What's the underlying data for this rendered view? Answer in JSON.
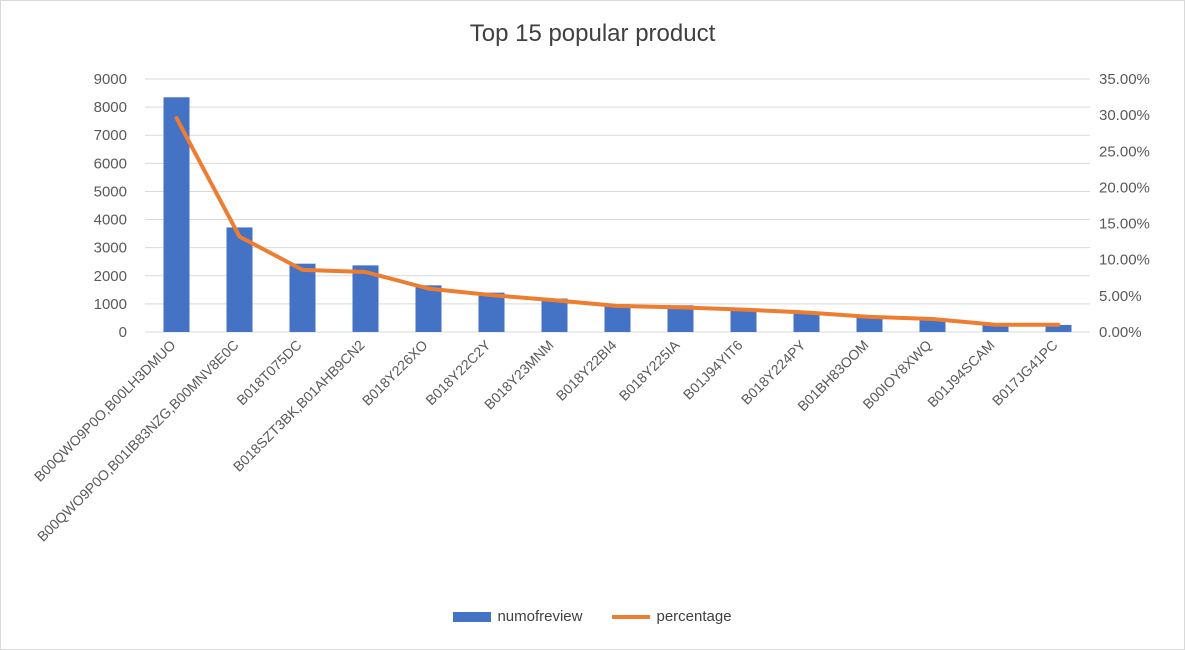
{
  "chart_data": {
    "type": "bar",
    "title": "Top 15 popular product",
    "categories": [
      "B00QWO9P0O,B00LH3DMUO",
      "B00QWO9P0O,B01IB83NZG,B00MNV8E0C",
      "B018T075DC",
      "B018SZT3BK,B01AHB9CN2",
      "B018Y226XO",
      "B018Y22C2Y",
      "B018Y23MNM",
      "B018Y22BI4",
      "B018Y225IA",
      "B01J94YIT6",
      "B018Y224PY",
      "B01BH83OOM",
      "B00IOY8XWQ",
      "B01J94SCAM",
      "B017JG41PC"
    ],
    "series": [
      {
        "name": "numofreview",
        "type": "bar",
        "axis": "left",
        "color": "#4472C4",
        "values": [
          8350,
          3720,
          2430,
          2370,
          1660,
          1400,
          1190,
          990,
          950,
          830,
          720,
          550,
          490,
          250,
          250
        ]
      },
      {
        "name": "percentage",
        "type": "line",
        "axis": "right",
        "color": "#ED7D31",
        "values": [
          0.296,
          0.132,
          0.086,
          0.083,
          0.06,
          0.051,
          0.044,
          0.036,
          0.034,
          0.031,
          0.027,
          0.021,
          0.018,
          0.01,
          0.01
        ]
      }
    ],
    "y_left": {
      "min": 0,
      "max": 9000,
      "ticks": [
        "0",
        "1000",
        "2000",
        "3000",
        "4000",
        "5000",
        "6000",
        "7000",
        "8000",
        "9000"
      ]
    },
    "y_right": {
      "min": 0,
      "max": 0.35,
      "ticks": [
        "0.00%",
        "5.00%",
        "10.00%",
        "15.00%",
        "20.00%",
        "25.00%",
        "30.00%",
        "35.00%"
      ]
    },
    "grid": true,
    "legend_position": "bottom"
  }
}
